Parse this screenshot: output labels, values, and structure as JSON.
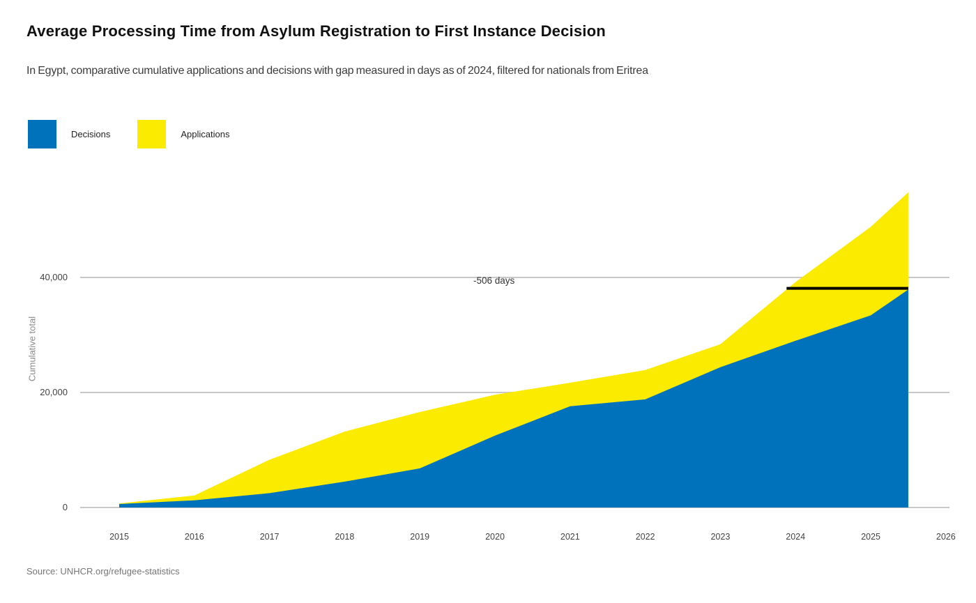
{
  "title": "Average Processing Time from Asylum Registration to First Instance Decision",
  "subtitle": "In Egypt, comparative cumulative applications and decisions with gap measured in days as of 2024, filtered for nationals from Eritrea",
  "source": "Source: UNHCR.org/refugee-statistics",
  "legend": [
    {
      "label": "Decisions",
      "color": "#0072BC"
    },
    {
      "label": "Applications",
      "color": "#FAEB00"
    }
  ],
  "colors": {
    "decisions": "#0072BC",
    "applications": "#FAEB00",
    "gridline": "#c8c8c8",
    "gap_line": "#000000"
  },
  "chart_data": {
    "type": "area",
    "title": "Average Processing Time from Asylum Registration to First Instance Decision",
    "ylabel": "Cumulative total",
    "xlabel": "",
    "x": [
      2015,
      2016,
      2017,
      2018,
      2019,
      2020,
      2021,
      2022,
      2023,
      2024,
      2025,
      2025.5
    ],
    "series": [
      {
        "name": "Applications",
        "color": "#FAEB00",
        "values": [
          700,
          2100,
          8300,
          13200,
          16600,
          19600,
          21700,
          23900,
          28400,
          39200,
          48800,
          54800
        ]
      },
      {
        "name": "Decisions",
        "color": "#0072BC",
        "values": [
          600,
          1250,
          2500,
          4500,
          6800,
          12500,
          17600,
          18800,
          24400,
          29000,
          33400,
          37900
        ]
      }
    ],
    "y_ticks": [
      {
        "value": 0,
        "label": "0"
      },
      {
        "value": 20000,
        "label": "20,000"
      },
      {
        "value": 40000,
        "label": "40,000"
      }
    ],
    "x_ticks": [
      {
        "value": 2015,
        "label": "2015"
      },
      {
        "value": 2016,
        "label": "2016"
      },
      {
        "value": 2017,
        "label": "2017"
      },
      {
        "value": 2018,
        "label": "2018"
      },
      {
        "value": 2019,
        "label": "2019"
      },
      {
        "value": 2020,
        "label": "2020"
      },
      {
        "value": 2021,
        "label": "2021"
      },
      {
        "value": 2022,
        "label": "2022"
      },
      {
        "value": 2023,
        "label": "2023"
      },
      {
        "value": 2024,
        "label": "2024"
      },
      {
        "value": 2025,
        "label": "2025"
      },
      {
        "value": 2026,
        "label": "2026"
      }
    ],
    "ylim": [
      0,
      56000
    ],
    "grid": "horizontal",
    "legend_position": "top-left",
    "annotation": {
      "label": "-506 days",
      "gap_value": 38100,
      "from_year": 2023.88,
      "to_year": 2025.5
    }
  }
}
